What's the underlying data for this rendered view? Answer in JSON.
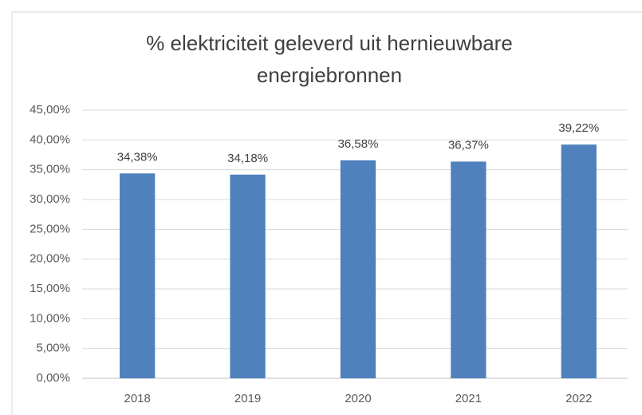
{
  "chart_data": {
    "type": "bar",
    "title": "% elektriciteit geleverd uit hernieuwbare energiebronnen",
    "categories": [
      "2018",
      "2019",
      "2020",
      "2021",
      "2022"
    ],
    "values": [
      34.38,
      34.18,
      36.58,
      36.37,
      39.22
    ],
    "value_labels": [
      "34,38%",
      "34,18%",
      "36,58%",
      "36,37%",
      "39,22%"
    ],
    "color": "#4f81bd",
    "ylim": [
      0,
      45
    ],
    "yticks": [
      {
        "value": 0,
        "label": "0,00%"
      },
      {
        "value": 5,
        "label": "5,00%"
      },
      {
        "value": 10,
        "label": "10,00%"
      },
      {
        "value": 15,
        "label": "15,00%"
      },
      {
        "value": 20,
        "label": "20,00%"
      },
      {
        "value": 25,
        "label": "25,00%"
      },
      {
        "value": 30,
        "label": "30,00%"
      },
      {
        "value": 35,
        "label": "35,00%"
      },
      {
        "value": 40,
        "label": "40,00%"
      },
      {
        "value": 45,
        "label": "45,00%"
      }
    ],
    "grid": true
  }
}
